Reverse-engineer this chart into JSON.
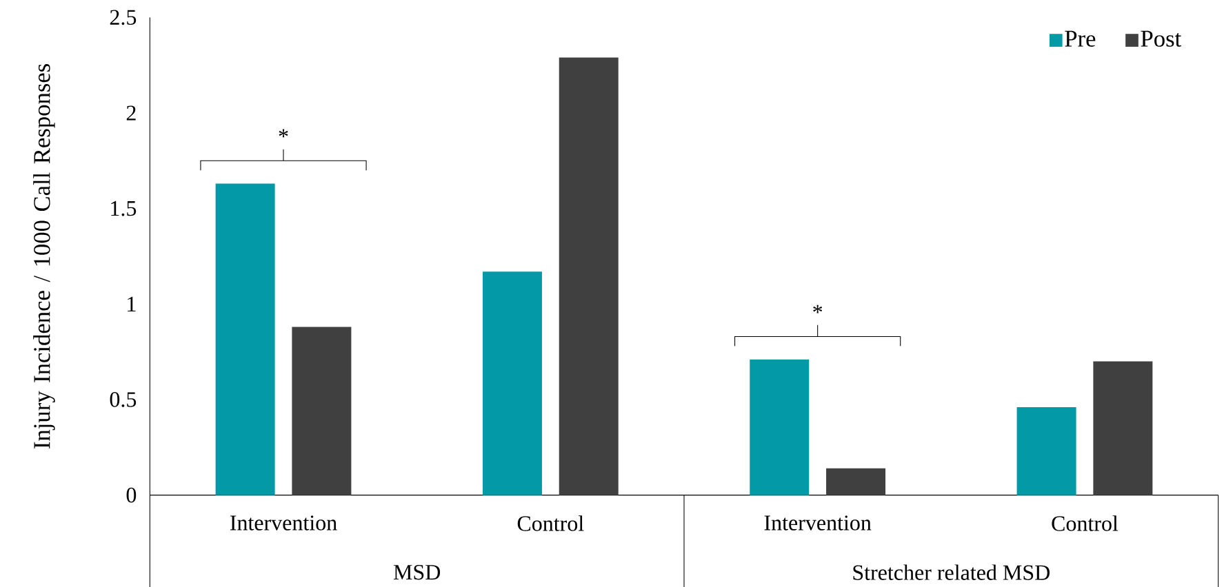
{
  "chart_data": {
    "type": "bar",
    "ylabel": "Injury Incidence / 1000 Call Responses",
    "categories": [
      "Intervention",
      "Control",
      "Intervention",
      "Control"
    ],
    "series": [
      {
        "name": "Pre",
        "color": "#0399a6",
        "values": [
          1.63,
          1.17,
          0.71,
          0.46
        ]
      },
      {
        "name": "Post",
        "color": "#404040",
        "values": [
          0.88,
          2.29,
          0.14,
          0.7
        ]
      }
    ],
    "ylim": [
      0,
      2.5
    ],
    "yticks": [
      0,
      0.5,
      1,
      1.5,
      2,
      2.5
    ],
    "grid": false,
    "legend": "top right",
    "annotations": [
      "*",
      "*",
      "MSD",
      "Stretcher related MSD"
    ]
  }
}
